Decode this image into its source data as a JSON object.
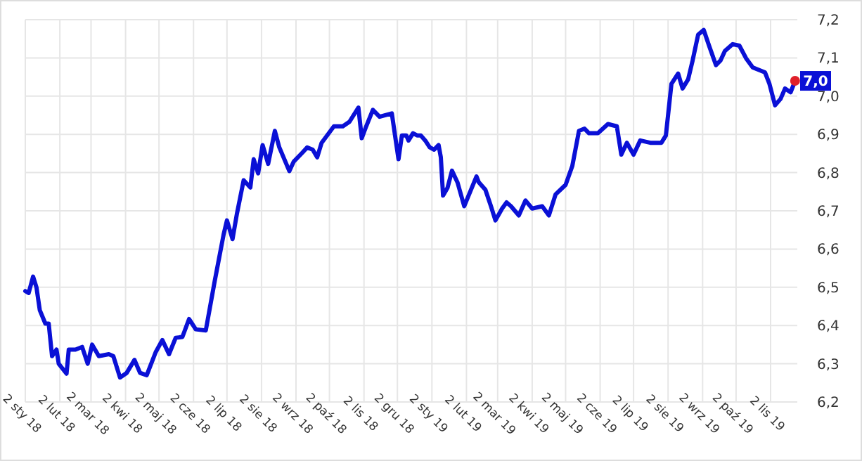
{
  "chart_data": {
    "type": "line",
    "x": [
      "2018-01-02",
      "2018-01-05",
      "2018-01-09",
      "2018-01-12",
      "2018-01-15",
      "2018-01-20",
      "2018-01-23",
      "2018-01-26",
      "2018-01-30",
      "2018-02-01",
      "2018-02-08",
      "2018-02-10",
      "2018-02-16",
      "2018-02-22",
      "2018-02-27",
      "2018-03-03",
      "2018-03-09",
      "2018-03-18",
      "2018-03-22",
      "2018-03-28",
      "2018-04-03",
      "2018-04-10",
      "2018-04-15",
      "2018-04-21",
      "2018-04-29",
      "2018-05-05",
      "2018-05-11",
      "2018-05-17",
      "2018-05-23",
      "2018-05-29",
      "2018-06-04",
      "2018-06-13",
      "2018-06-21",
      "2018-06-29",
      "2018-07-02",
      "2018-07-07",
      "2018-07-11",
      "2018-07-17",
      "2018-07-23",
      "2018-07-26",
      "2018-07-30",
      "2018-08-03",
      "2018-08-08",
      "2018-08-14",
      "2018-08-18",
      "2018-08-27",
      "2018-08-31",
      "2018-09-08",
      "2018-09-12",
      "2018-09-17",
      "2018-09-21",
      "2018-09-25",
      "2018-10-06",
      "2018-10-14",
      "2018-10-20",
      "2018-10-28",
      "2018-10-31",
      "2018-11-04",
      "2018-11-10",
      "2018-11-16",
      "2018-11-27",
      "2018-12-03",
      "2018-12-06",
      "2018-12-10",
      "2018-12-12",
      "2018-12-16",
      "2018-12-20",
      "2018-12-23",
      "2018-12-27",
      "2018-12-31",
      "2019-01-04",
      "2019-01-08",
      "2019-01-10",
      "2019-01-12",
      "2019-01-16",
      "2019-01-20",
      "2019-01-25",
      "2019-01-31",
      "2019-02-11",
      "2019-02-13",
      "2019-02-19",
      "2019-02-24",
      "2019-02-28",
      "2019-03-06",
      "2019-03-10",
      "2019-03-14",
      "2019-03-21",
      "2019-03-27",
      "2019-04-02",
      "2019-04-11",
      "2019-04-17",
      "2019-04-23",
      "2019-05-02",
      "2019-05-08",
      "2019-05-14",
      "2019-05-19",
      "2019-05-23",
      "2019-05-31",
      "2019-06-09",
      "2019-06-17",
      "2019-06-21",
      "2019-06-26",
      "2019-07-02",
      "2019-07-08",
      "2019-07-17",
      "2019-07-27",
      "2019-07-31",
      "2019-08-05",
      "2019-08-11",
      "2019-08-15",
      "2019-08-20",
      "2019-08-24",
      "2019-08-29",
      "2019-09-03",
      "2019-09-08",
      "2019-09-14",
      "2019-09-18",
      "2019-09-22",
      "2019-09-29",
      "2019-10-05",
      "2019-10-11",
      "2019-10-17",
      "2019-10-28",
      "2019-11-01",
      "2019-11-06",
      "2019-11-11",
      "2019-11-15",
      "2019-11-20",
      "2019-11-24"
    ],
    "series": [
      {
        "color": "#0a10d6",
        "values": [
          6.49,
          6.485,
          6.528,
          6.5,
          6.44,
          6.405,
          6.405,
          6.32,
          6.337,
          6.3,
          6.274,
          6.337,
          6.337,
          6.344,
          6.3,
          6.35,
          6.32,
          6.325,
          6.32,
          6.264,
          6.276,
          6.31,
          6.276,
          6.27,
          6.33,
          6.362,
          6.325,
          6.368,
          6.37,
          6.417,
          6.39,
          6.387,
          6.516,
          6.638,
          6.675,
          6.626,
          6.693,
          6.78,
          6.761,
          6.835,
          6.798,
          6.872,
          6.823,
          6.909,
          6.866,
          6.804,
          6.829,
          6.853,
          6.866,
          6.86,
          6.84,
          6.878,
          6.921,
          6.921,
          6.933,
          6.97,
          6.89,
          6.921,
          6.964,
          6.946,
          6.955,
          6.835,
          6.897,
          6.897,
          6.884,
          6.903,
          6.897,
          6.897,
          6.884,
          6.866,
          6.86,
          6.872,
          6.84,
          6.74,
          6.76,
          6.805,
          6.774,
          6.712,
          6.79,
          6.775,
          6.755,
          6.712,
          6.675,
          6.706,
          6.722,
          6.712,
          6.688,
          6.727,
          6.706,
          6.712,
          6.688,
          6.743,
          6.768,
          6.817,
          6.909,
          6.915,
          6.903,
          6.903,
          6.927,
          6.921,
          6.847,
          6.878,
          6.847,
          6.884,
          6.878,
          6.878,
          6.897,
          7.032,
          7.059,
          7.02,
          7.044,
          7.093,
          7.161,
          7.173,
          7.13,
          7.081,
          7.093,
          7.118,
          7.136,
          7.132,
          7.099,
          7.075,
          7.062,
          7.032,
          6.976,
          6.993,
          7.02,
          7.01,
          7.04
        ]
      }
    ],
    "xlim": [
      "2018-01-02",
      "2019-11-26"
    ],
    "xticks": [
      {
        "value": "2018-01-02",
        "label": "2 sty 18"
      },
      {
        "value": "2018-02-02",
        "label": "2 lut 18"
      },
      {
        "value": "2018-03-02",
        "label": "2 mar 18"
      },
      {
        "value": "2018-04-02",
        "label": "2 kwi 18"
      },
      {
        "value": "2018-05-02",
        "label": "2 maj 18"
      },
      {
        "value": "2018-06-02",
        "label": "2 cze 18"
      },
      {
        "value": "2018-07-02",
        "label": "2 lip 18"
      },
      {
        "value": "2018-08-02",
        "label": "2 sie 18"
      },
      {
        "value": "2018-09-02",
        "label": "2 wrz 18"
      },
      {
        "value": "2018-10-02",
        "label": "2 paź 18"
      },
      {
        "value": "2018-11-02",
        "label": "2 lis 18"
      },
      {
        "value": "2018-12-02",
        "label": "2 gru 18"
      },
      {
        "value": "2019-01-02",
        "label": "2 sty 19"
      },
      {
        "value": "2019-02-02",
        "label": "2 lut 19"
      },
      {
        "value": "2019-03-02",
        "label": "2 mar 19"
      },
      {
        "value": "2019-04-02",
        "label": "2 kwi 19"
      },
      {
        "value": "2019-05-02",
        "label": "2 maj 19"
      },
      {
        "value": "2019-06-02",
        "label": "2 cze 19"
      },
      {
        "value": "2019-07-02",
        "label": "2 lip 19"
      },
      {
        "value": "2019-08-02",
        "label": "2 sie 19"
      },
      {
        "value": "2019-09-02",
        "label": "2 wrz 19"
      },
      {
        "value": "2019-10-02",
        "label": "2 paź 19"
      },
      {
        "value": "2019-11-02",
        "label": "2 lis 19"
      }
    ],
    "ylim": [
      6.2,
      7.2
    ],
    "yticks": [
      {
        "value": 6.2,
        "label": "6,2"
      },
      {
        "value": 6.3,
        "label": "6,3"
      },
      {
        "value": 6.4,
        "label": "6,4"
      },
      {
        "value": 6.5,
        "label": "6,5"
      },
      {
        "value": 6.6,
        "label": "6,6"
      },
      {
        "value": 6.7,
        "label": "6,7"
      },
      {
        "value": 6.8,
        "label": "6,8"
      },
      {
        "value": 6.9,
        "label": "6,9"
      },
      {
        "value": 7.0,
        "label": "7,0"
      },
      {
        "value": 7.1,
        "label": "7,1"
      },
      {
        "value": 7.2,
        "label": "7,2"
      }
    ],
    "grid": true,
    "marker": "none",
    "line_style": "solid",
    "annotations": [
      {
        "text": "7,0",
        "x": "2019-11-24",
        "y": 7.04
      }
    ]
  }
}
